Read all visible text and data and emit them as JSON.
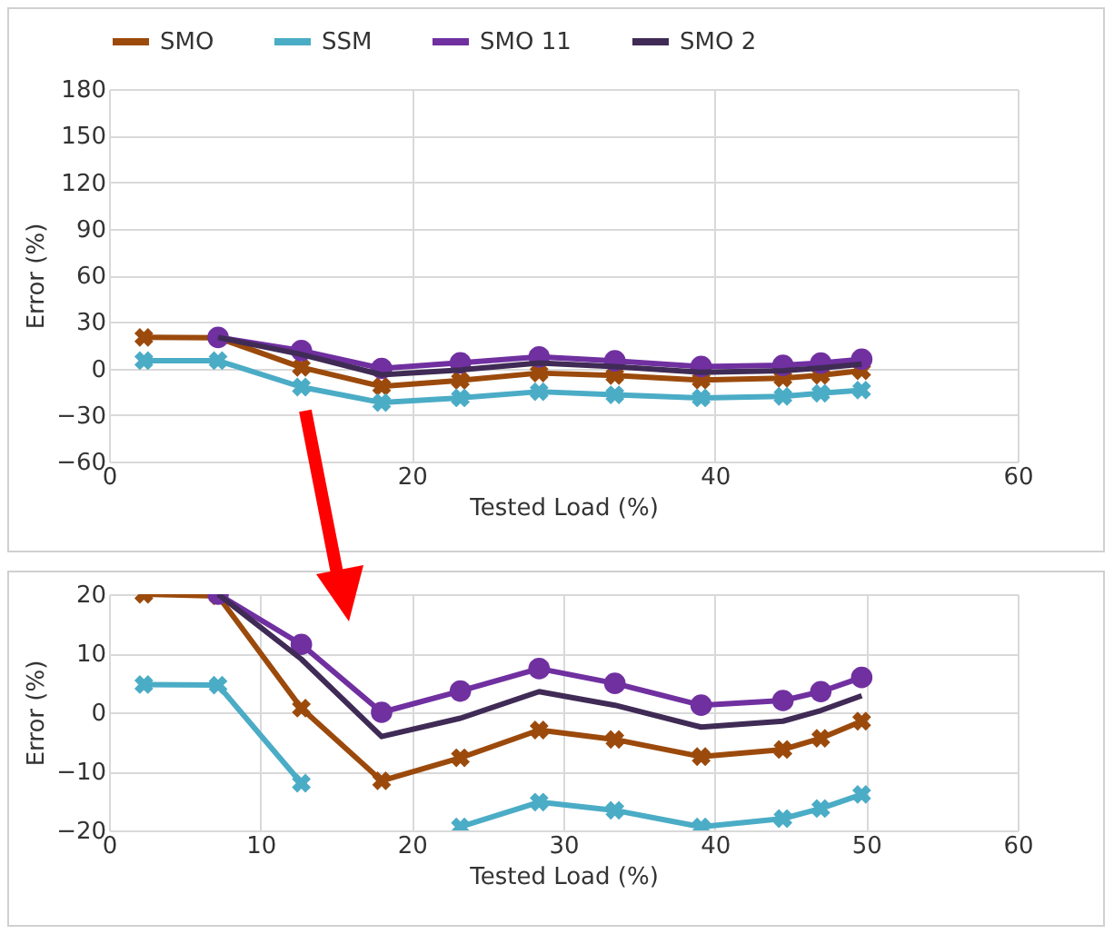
{
  "chart_data": [
    {
      "type": "line",
      "x": [
        2.3,
        7.2,
        12.7,
        18,
        23.2,
        28.4,
        33.4,
        39.1,
        44.5,
        47,
        49.7
      ],
      "xlabel": "Tested Load (%)",
      "ylabel": "Error (%)",
      "xlim": [
        0,
        60
      ],
      "xticks": [
        0,
        20,
        40,
        60
      ],
      "ylim": [
        -60,
        180
      ],
      "yticks": [
        -60,
        -30,
        0,
        30,
        60,
        90,
        120,
        150,
        180
      ],
      "grid": true,
      "legend": "top",
      "series": [
        {
          "name": "SMO",
          "color": "#9b4a0c",
          "marker": "cross",
          "values": [
            20,
            19.7,
            0.7,
            -11.6,
            -7.7,
            -3,
            -4.6,
            -7.5,
            -6.3,
            -4.4,
            -1.5
          ]
        },
        {
          "name": "SSM",
          "color": "#4bacc6",
          "marker": "cross",
          "values": [
            5,
            5,
            -12,
            -22,
            -19,
            -15,
            -17,
            -19,
            -18,
            -16,
            -14
          ]
        },
        {
          "name": "SMO 11",
          "color": "#7030a0",
          "marker": "circle",
          "values": [
            null,
            20,
            11.5,
            0,
            3.6,
            7.4,
            4.9,
            1.2,
            2,
            3.5,
            5.9
          ]
        },
        {
          "name": "SMO 2",
          "color": "#3f2b55",
          "marker": "none",
          "values": [
            null,
            20,
            9,
            -4.1,
            -1,
            3.5,
            1.2,
            -2.5,
            -1.5,
            0.3,
            2.8
          ]
        }
      ]
    },
    {
      "type": "line",
      "x": [
        2.3,
        7.2,
        12.7,
        18,
        23.2,
        28.4,
        33.4,
        39.1,
        44.5,
        47,
        49.7
      ],
      "xlabel": "Tested Load (%)",
      "ylabel": "Error (%)",
      "xlim": [
        0,
        60
      ],
      "xticks": [
        0,
        10,
        20,
        30,
        40,
        50,
        60
      ],
      "ylim": [
        -20,
        20
      ],
      "yticks": [
        -20,
        -10,
        0,
        10,
        20
      ],
      "grid": true,
      "series": [
        {
          "color": "#9b4a0c",
          "marker": "cross",
          "values": [
            20,
            19.7,
            0.7,
            -11.6,
            -7.7,
            -3,
            -4.6,
            -7.5,
            -6.3,
            -4.4,
            -1.5
          ]
        },
        {
          "color": "#4bacc6",
          "marker": "cross",
          "values": [
            4.7,
            4.6,
            -12,
            null,
            -19.4,
            -15.2,
            -16.6,
            -19.4,
            -18,
            -16.3,
            -13.9
          ]
        },
        {
          "color": "#7030a0",
          "marker": "circle",
          "values": [
            null,
            20,
            11.5,
            0,
            3.6,
            7.4,
            4.9,
            1.2,
            2,
            3.5,
            5.9
          ]
        },
        {
          "color": "#3f2b55",
          "marker": "none",
          "values": [
            null,
            20,
            9,
            -4.1,
            -1,
            3.5,
            1.2,
            -2.5,
            -1.5,
            0.3,
            2.8
          ]
        }
      ]
    }
  ]
}
